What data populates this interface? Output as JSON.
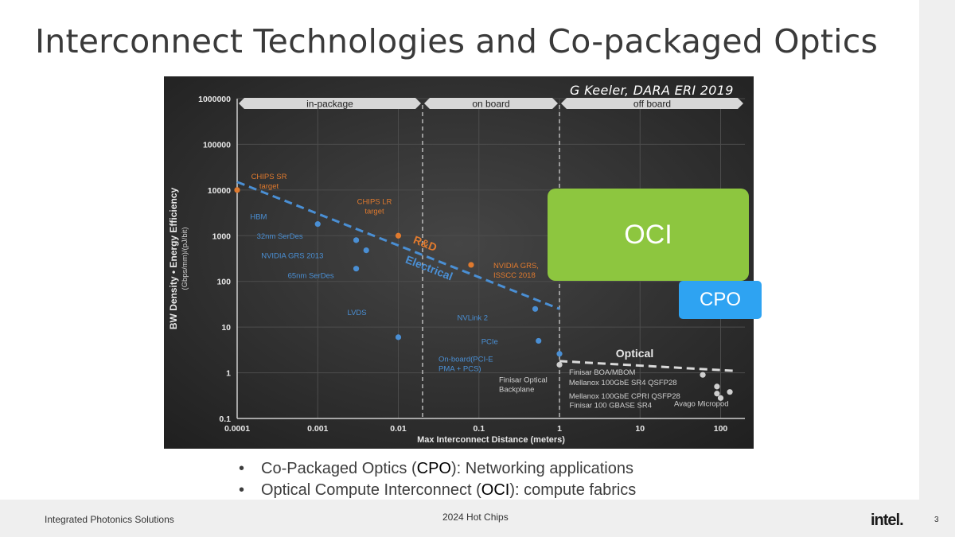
{
  "slide": {
    "title": "Interconnect Technologies and Co-packaged Optics",
    "citation": "G Keeler, DARA ERI 2019",
    "oci_label": "OCI",
    "cpo_label": "CPO",
    "bullets": [
      {
        "marker": "•",
        "pre": "Co-Packaged Optics (",
        "bold": "CPO",
        "post": "): Networking applications"
      },
      {
        "marker": "•",
        "pre": "Optical Compute Interconnect (",
        "bold": "OCI",
        "post": "): compute fabrics"
      }
    ],
    "footer_left": "Integrated Photonics Solutions",
    "footer_center": "2024 Hot Chips",
    "logo": "intel.",
    "page_number": "3"
  },
  "chart_data": {
    "type": "scatter",
    "background": "#2b2b2b",
    "xlabel": "Max Interconnect Distance (meters)",
    "ylabel": "BW Density • Energy Efficiency",
    "ylabel_sub": "(Gbps/mm)/(pJ/bit)",
    "xscale": "log",
    "yscale": "log",
    "xlim": [
      0.0001,
      200
    ],
    "ylim": [
      0.1,
      1000000
    ],
    "x_ticks": [
      {
        "v": 0.0001,
        "label": "0.0001"
      },
      {
        "v": 0.001,
        "label": "0.001"
      },
      {
        "v": 0.01,
        "label": "0.01"
      },
      {
        "v": 0.1,
        "label": "0.1"
      },
      {
        "v": 1,
        "label": "1"
      },
      {
        "v": 10,
        "label": "10"
      },
      {
        "v": 100,
        "label": "100"
      }
    ],
    "y_ticks": [
      {
        "v": 1000000,
        "label": "1000000"
      },
      {
        "v": 100000,
        "label": "100000"
      },
      {
        "v": 10000,
        "label": "10000"
      },
      {
        "v": 1000,
        "label": "1000"
      },
      {
        "v": 100,
        "label": "100"
      },
      {
        "v": 10,
        "label": "10"
      },
      {
        "v": 1,
        "label": "1"
      },
      {
        "v": 0.1,
        "label": "0.1"
      }
    ],
    "grid": true,
    "regions": [
      {
        "label": "in-package",
        "from": 0.0001,
        "to": 0.02
      },
      {
        "label": "on board",
        "from": 0.02,
        "to": 1
      },
      {
        "label": "off board",
        "from": 1,
        "to": 200
      }
    ],
    "dividers": [
      0.02,
      1
    ],
    "trendlines": [
      {
        "name": "Electrical",
        "label": "R&D",
        "color": "#4a8fd4",
        "points": [
          [
            0.0001,
            15000
          ],
          [
            1,
            25
          ]
        ]
      },
      {
        "name": "Optical",
        "label": "Optical",
        "color": "#d9d9d9",
        "points": [
          [
            1,
            1.8
          ],
          [
            150,
            1.1
          ]
        ]
      }
    ],
    "series": [
      {
        "name": "R&D",
        "color": "#e07a2e",
        "points": [
          {
            "x": 0.0001,
            "y": 10000,
            "label": "CHIPS SR\ntarget"
          },
          {
            "x": 0.01,
            "y": 1000,
            "label": "CHIPS LR\ntarget"
          },
          {
            "x": 0.08,
            "y": 230,
            "label": "NVIDIA GRS,\nISSCC 2018"
          }
        ]
      },
      {
        "name": "Electrical",
        "color": "#4a8fd4",
        "points": [
          {
            "x": 0.001,
            "y": 1800,
            "label": "HBM"
          },
          {
            "x": 0.003,
            "y": 800,
            "label": "32nm SerDes"
          },
          {
            "x": 0.004,
            "y": 480,
            "label": "NVIDIA GRS 2013"
          },
          {
            "x": 0.003,
            "y": 190,
            "label": "65nm SerDes"
          },
          {
            "x": 0.01,
            "y": 6,
            "label": "LVDS"
          },
          {
            "x": 0.5,
            "y": 25,
            "label": "NVLink 2"
          },
          {
            "x": 0.55,
            "y": 5,
            "label": "PCIe"
          },
          {
            "x": 1,
            "y": 2.6,
            "label": "On-board(PCI-E\nPMA + PCS)"
          }
        ]
      },
      {
        "name": "Optical",
        "color": "#cfcfcf",
        "points": [
          {
            "x": 1,
            "y": 1.5,
            "label": "Finisar Optical\nBackplane"
          },
          {
            "x": 60,
            "y": 0.9,
            "label": "Finisar BOA/MBOM"
          },
          {
            "x": 90,
            "y": 0.5,
            "label": "Mellanox 100GbE SR4 QSFP28"
          },
          {
            "x": 90,
            "y": 0.35,
            "label": "Mellanox 100GbE CPRI QSFP28"
          },
          {
            "x": 130,
            "y": 0.38,
            "label": "Avago Micropod"
          },
          {
            "x": 100,
            "y": 0.28,
            "label": "Finisar 100 GBASE SR4"
          }
        ]
      }
    ]
  }
}
